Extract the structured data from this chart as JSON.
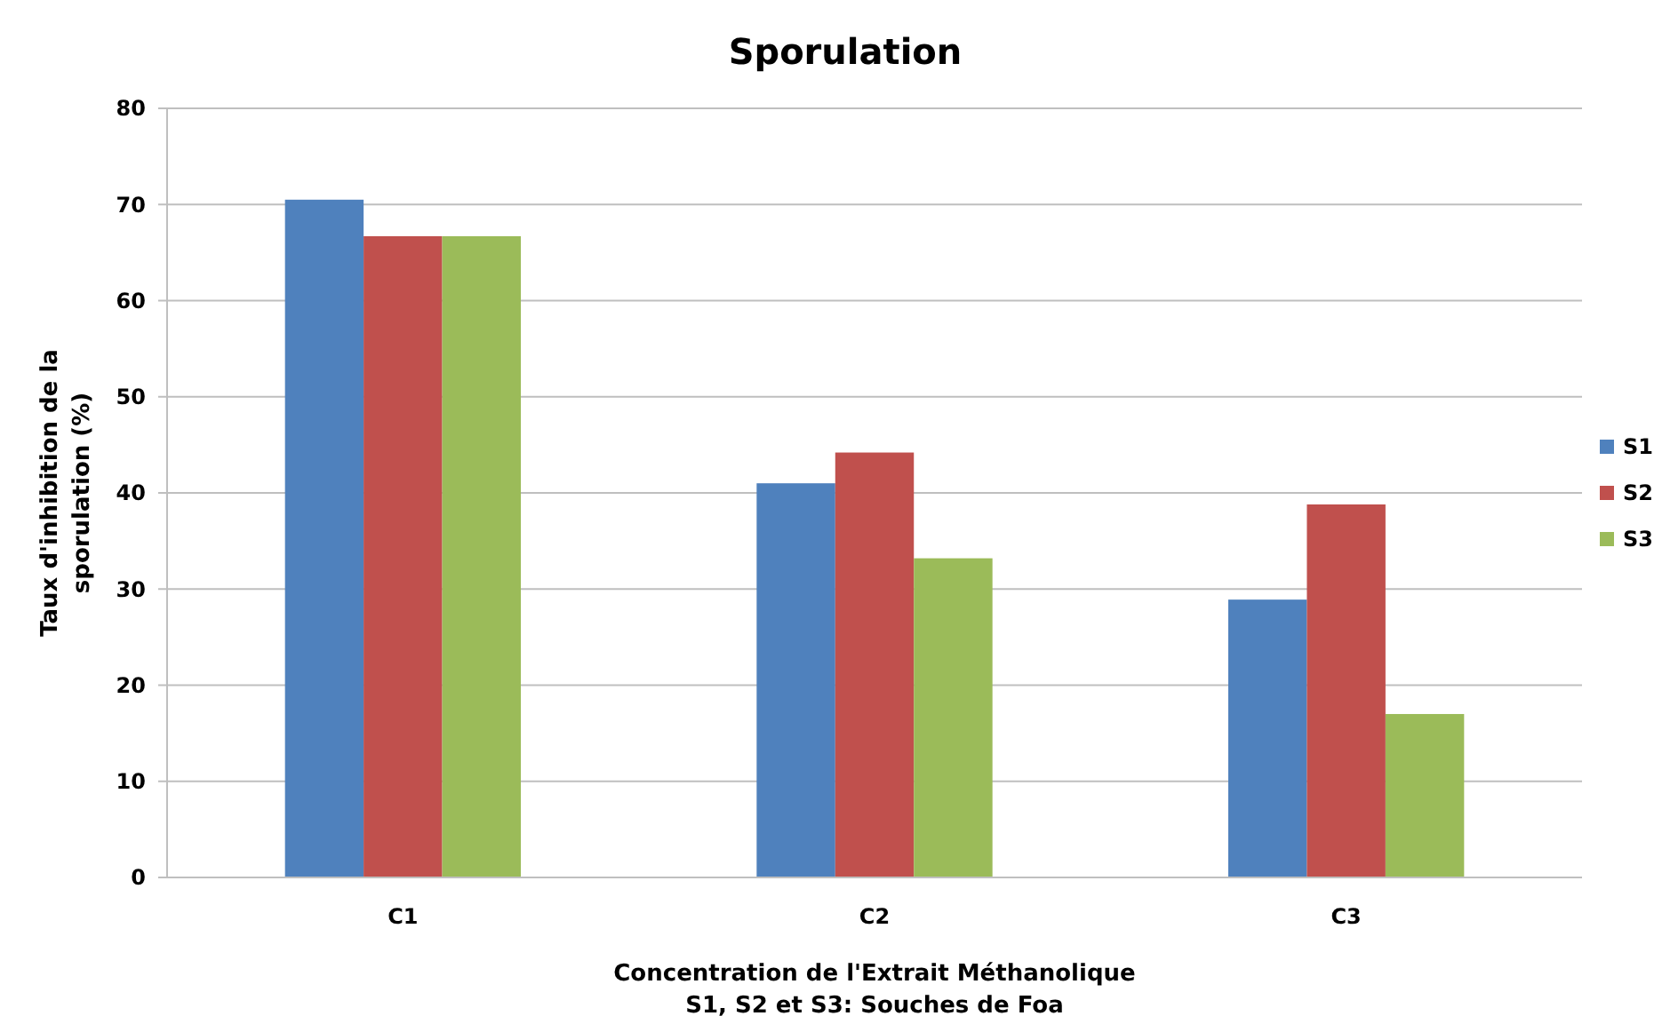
{
  "chart_data": {
    "type": "bar",
    "title": "Sporulation",
    "xlabel": "Concentration de l'Extrait Méthanolique\nS1, S2 et S3: Souches de Foa",
    "ylabel": "Taux d'inhibition de la\nsporulation (%)",
    "categories": [
      "C1",
      "C2",
      "C3"
    ],
    "series": [
      {
        "name": "S1",
        "color": "#4f81bd",
        "values": [
          70.5,
          41.0,
          28.9
        ]
      },
      {
        "name": "S2",
        "color": "#c0504d",
        "values": [
          66.7,
          44.2,
          38.8
        ]
      },
      {
        "name": "S3",
        "color": "#9bbb59",
        "values": [
          66.7,
          33.2,
          17.0
        ]
      }
    ],
    "ylim": [
      0,
      80
    ],
    "yticks": [
      0,
      10,
      20,
      30,
      40,
      50,
      60,
      70,
      80
    ],
    "grid": "y",
    "legend": "right"
  }
}
